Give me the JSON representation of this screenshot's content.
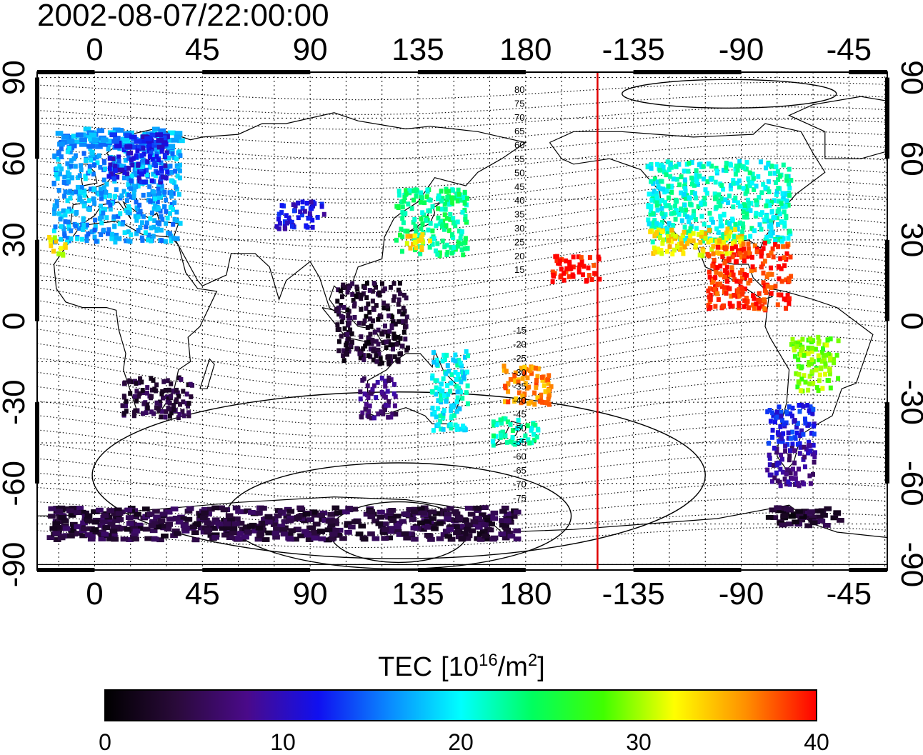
{
  "title": "2002-08-07/22:00:00",
  "map": {
    "x_ticks_top": [
      "0",
      "45",
      "90",
      "135",
      "180",
      "-135",
      "-90",
      "-45"
    ],
    "x_ticks_bottom": [
      "0",
      "45",
      "90",
      "135",
      "180",
      "-135",
      "-90",
      "-45"
    ],
    "y_ticks_left": [
      "90",
      "60",
      "30",
      "0",
      "-30",
      "-60",
      "-90"
    ],
    "y_ticks_right": [
      "90",
      "60",
      "30",
      "0",
      "-30",
      "-60",
      "-90"
    ],
    "lon_range": [
      -24,
      331
    ],
    "lat_range": [
      -92,
      92
    ],
    "terminator_lon": 210,
    "terminator_color": "#e00000",
    "grid": "dotted, 15 degree spacing",
    "coastlines": true,
    "magnetic_latitude_labels_north": [
      "80",
      "75",
      "70",
      "65",
      "60",
      "55",
      "50",
      "45",
      "40",
      "35",
      "30",
      "25",
      "20",
      "15"
    ],
    "magnetic_latitude_labels_south": [
      "-15",
      "-20",
      "-25",
      "-30",
      "-35",
      "-40",
      "-45",
      "-50",
      "-55",
      "-60",
      "-65",
      "-70",
      "-75"
    ]
  },
  "colorbar": {
    "label_main": "TEC",
    "label_unit_base": "[10",
    "label_unit_exp": "16",
    "label_unit_mid": "/m",
    "label_unit_exp2": "2",
    "label_unit_end": "]",
    "min": 0,
    "max": 40,
    "tick_labels": [
      "0",
      "10",
      "20",
      "30",
      "40"
    ],
    "colors": [
      "#000000",
      "#2a0a3a",
      "#4a0a8a",
      "#1010f0",
      "#0a8aff",
      "#00ffff",
      "#00ff60",
      "#40ff00",
      "#ffff00",
      "#ff9000",
      "#ff0000"
    ]
  },
  "chart_data": {
    "type": "heatmap",
    "title": "2002-08-07/22:00:00",
    "xlabel": "",
    "ylabel": "",
    "zlabel": "TEC [10^16/m^2]",
    "xlim": [
      -24,
      331
    ],
    "ylim": [
      -92,
      92
    ],
    "zlim": [
      0,
      40
    ],
    "regions": [
      {
        "lon": [
          -18,
          35
        ],
        "lat": [
          30,
          72
        ],
        "tec": 17
      },
      {
        "lon": [
          5,
          30
        ],
        "lat": [
          52,
          70
        ],
        "tec": 12
      },
      {
        "lon": [
          -20,
          -12
        ],
        "lat": [
          25,
          32
        ],
        "tec": 32
      },
      {
        "lon": [
          75,
          95
        ],
        "lat": [
          35,
          45
        ],
        "tec": 11
      },
      {
        "lon": [
          125,
          155
        ],
        "lat": [
          25,
          50
        ],
        "tec": 23
      },
      {
        "lon": [
          128,
          140
        ],
        "lat": [
          27,
          33
        ],
        "tec": 33
      },
      {
        "lon": [
          100,
          130
        ],
        "lat": [
          -15,
          15
        ],
        "tec": 3
      },
      {
        "lon": [
          10,
          40
        ],
        "lat": [
          -35,
          -20
        ],
        "tec": 4
      },
      {
        "lon": [
          110,
          125
        ],
        "lat": [
          -35,
          -20
        ],
        "tec": 7
      },
      {
        "lon": [
          140,
          155
        ],
        "lat": [
          -40,
          -10
        ],
        "tec": 20
      },
      {
        "lon": [
          165,
          185
        ],
        "lat": [
          -45,
          -35
        ],
        "tec": 22
      },
      {
        "lon": [
          170,
          190
        ],
        "lat": [
          -30,
          -15
        ],
        "tec": 36
      },
      {
        "lon": [
          190,
          210
        ],
        "lat": [
          15,
          25
        ],
        "tec": 40
      },
      {
        "lon": [
          230,
          290
        ],
        "lat": [
          30,
          60
        ],
        "tec": 21
      },
      {
        "lon": [
          230,
          270
        ],
        "lat": [
          25,
          35
        ],
        "tec": 33
      },
      {
        "lon": [
          255,
          290
        ],
        "lat": [
          5,
          30
        ],
        "tec": 39
      },
      {
        "lon": [
          290,
          310
        ],
        "lat": [
          -25,
          -5
        ],
        "tec": 29
      },
      {
        "lon": [
          280,
          300
        ],
        "lat": [
          -45,
          -30
        ],
        "tec": 12
      },
      {
        "lon": [
          280,
          300
        ],
        "lat": [
          -60,
          -45
        ],
        "tec": 8
      },
      {
        "lon": [
          -20,
          175
        ],
        "lat": [
          -80,
          -68
        ],
        "tec": 4
      },
      {
        "lon": [
          280,
          310
        ],
        "lat": [
          -75,
          -68
        ],
        "tec": 3
      }
    ]
  }
}
